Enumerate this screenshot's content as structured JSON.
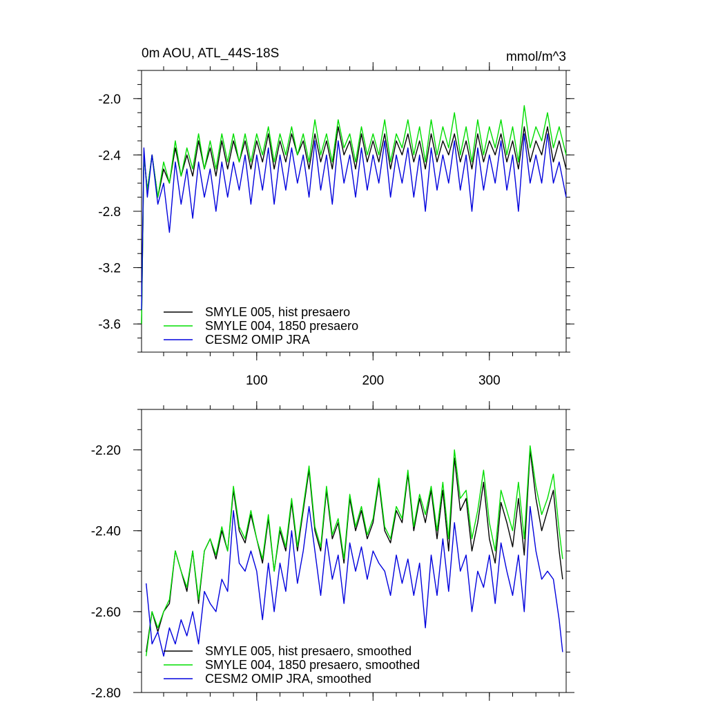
{
  "chart_data": [
    {
      "type": "line",
      "title": "0m AOU, ATL_44S-18S",
      "units": "mmol/m^3",
      "xlim": [
        1,
        366
      ],
      "ylim": [
        -3.8,
        -1.8
      ],
      "xticks": [
        100,
        200,
        300
      ],
      "xtick_labels": [
        "100",
        "200",
        "300"
      ],
      "yticks": [
        -2.0,
        -2.4,
        -2.8,
        -3.2,
        -3.6
      ],
      "ytick_labels": [
        "-2.0",
        "-2.4",
        "-2.8",
        "-3.2",
        "-3.6"
      ],
      "legend_position": "bottom-left",
      "grid": false,
      "series": [
        {
          "name": "SMYLE 005, hist presaero",
          "color": "#000000",
          "x": [
            1,
            3,
            6,
            10,
            15,
            20,
            25,
            30,
            35,
            40,
            45,
            50,
            55,
            60,
            65,
            70,
            75,
            80,
            85,
            90,
            95,
            100,
            105,
            110,
            115,
            120,
            125,
            130,
            135,
            140,
            145,
            150,
            155,
            160,
            165,
            170,
            175,
            180,
            185,
            190,
            195,
            200,
            205,
            210,
            215,
            220,
            225,
            230,
            235,
            240,
            245,
            250,
            255,
            260,
            265,
            270,
            275,
            280,
            285,
            290,
            295,
            300,
            305,
            310,
            315,
            320,
            325,
            330,
            335,
            340,
            345,
            350,
            355,
            360,
            366
          ],
          "values": [
            -3.6,
            -2.4,
            -2.65,
            -2.4,
            -2.7,
            -2.5,
            -2.6,
            -2.35,
            -2.55,
            -2.4,
            -2.55,
            -2.3,
            -2.5,
            -2.35,
            -2.55,
            -2.3,
            -2.5,
            -2.3,
            -2.45,
            -2.3,
            -2.5,
            -2.3,
            -2.45,
            -2.25,
            -2.5,
            -2.3,
            -2.45,
            -2.25,
            -2.4,
            -2.3,
            -2.5,
            -2.25,
            -2.45,
            -2.3,
            -2.5,
            -2.2,
            -2.4,
            -2.3,
            -2.5,
            -2.25,
            -2.45,
            -2.3,
            -2.45,
            -2.25,
            -2.5,
            -2.3,
            -2.4,
            -2.25,
            -2.45,
            -2.3,
            -2.5,
            -2.25,
            -2.45,
            -2.3,
            -2.4,
            -2.25,
            -2.45,
            -2.3,
            -2.5,
            -2.25,
            -2.45,
            -2.3,
            -2.4,
            -2.25,
            -2.45,
            -2.3,
            -2.5,
            -2.2,
            -2.45,
            -2.3,
            -2.4,
            -2.2,
            -2.45,
            -2.3,
            -2.5
          ]
        },
        {
          "name": "SMYLE 004, 1850 presaero",
          "color": "#00dd00",
          "x": [
            1,
            3,
            6,
            10,
            15,
            20,
            25,
            30,
            35,
            40,
            45,
            50,
            55,
            60,
            65,
            70,
            75,
            80,
            85,
            90,
            95,
            100,
            105,
            110,
            115,
            120,
            125,
            130,
            135,
            140,
            145,
            150,
            155,
            160,
            165,
            170,
            175,
            180,
            185,
            190,
            195,
            200,
            205,
            210,
            215,
            220,
            225,
            230,
            235,
            240,
            245,
            250,
            255,
            260,
            265,
            270,
            275,
            280,
            285,
            290,
            295,
            300,
            305,
            310,
            315,
            320,
            325,
            330,
            335,
            340,
            345,
            350,
            355,
            360,
            366
          ],
          "values": [
            -3.6,
            -2.4,
            -2.65,
            -2.4,
            -2.7,
            -2.45,
            -2.6,
            -2.3,
            -2.55,
            -2.35,
            -2.5,
            -2.25,
            -2.5,
            -2.3,
            -2.5,
            -2.25,
            -2.45,
            -2.25,
            -2.45,
            -2.25,
            -2.45,
            -2.25,
            -2.4,
            -2.2,
            -2.45,
            -2.25,
            -2.4,
            -2.2,
            -2.4,
            -2.25,
            -2.45,
            -2.15,
            -2.4,
            -2.25,
            -2.45,
            -2.15,
            -2.35,
            -2.25,
            -2.45,
            -2.2,
            -2.4,
            -2.25,
            -2.4,
            -2.15,
            -2.45,
            -2.25,
            -2.35,
            -2.15,
            -2.4,
            -2.2,
            -2.45,
            -2.15,
            -2.4,
            -2.2,
            -2.35,
            -2.1,
            -2.4,
            -2.2,
            -2.45,
            -2.15,
            -2.4,
            -2.2,
            -2.35,
            -2.15,
            -2.4,
            -2.2,
            -2.45,
            -2.05,
            -2.35,
            -2.2,
            -2.3,
            -2.1,
            -2.35,
            -2.2,
            -2.4
          ]
        },
        {
          "name": "CESM2 OMIP JRA",
          "color": "#0000dd",
          "x": [
            1,
            3,
            6,
            10,
            15,
            20,
            25,
            30,
            35,
            40,
            45,
            50,
            55,
            60,
            65,
            70,
            75,
            80,
            85,
            90,
            95,
            100,
            105,
            110,
            115,
            120,
            125,
            130,
            135,
            140,
            145,
            150,
            155,
            160,
            165,
            170,
            175,
            180,
            185,
            190,
            195,
            200,
            205,
            210,
            215,
            220,
            225,
            230,
            235,
            240,
            245,
            250,
            255,
            260,
            265,
            270,
            275,
            280,
            285,
            290,
            295,
            300,
            305,
            310,
            315,
            320,
            325,
            330,
            335,
            340,
            345,
            350,
            355,
            360,
            366
          ],
          "values": [
            -3.5,
            -2.35,
            -2.7,
            -2.4,
            -2.75,
            -2.6,
            -2.95,
            -2.45,
            -2.75,
            -2.5,
            -2.85,
            -2.45,
            -2.7,
            -2.5,
            -2.8,
            -2.45,
            -2.7,
            -2.45,
            -2.65,
            -2.4,
            -2.75,
            -2.4,
            -2.65,
            -2.35,
            -2.75,
            -2.4,
            -2.65,
            -2.35,
            -2.6,
            -2.4,
            -2.7,
            -2.3,
            -2.65,
            -2.4,
            -2.75,
            -2.3,
            -2.6,
            -2.4,
            -2.7,
            -2.35,
            -2.65,
            -2.4,
            -2.6,
            -2.3,
            -2.7,
            -2.4,
            -2.6,
            -2.35,
            -2.7,
            -2.4,
            -2.8,
            -2.35,
            -2.65,
            -2.4,
            -2.6,
            -2.3,
            -2.65,
            -2.4,
            -2.8,
            -2.35,
            -2.65,
            -2.4,
            -2.6,
            -2.3,
            -2.65,
            -2.4,
            -2.8,
            -2.25,
            -2.6,
            -2.4,
            -2.6,
            -2.25,
            -2.6,
            -2.45,
            -2.7
          ]
        }
      ]
    },
    {
      "type": "line",
      "title": "",
      "xlim": [
        1,
        366
      ],
      "ylim": [
        -2.8,
        -2.1
      ],
      "xticks": [
        100,
        200,
        300
      ],
      "yticks": [
        -2.2,
        -2.4,
        -2.6,
        -2.8
      ],
      "ytick_labels": [
        "-2.20",
        "-2.40",
        "-2.60",
        "-2.80"
      ],
      "legend_position": "bottom-left",
      "grid": false,
      "series": [
        {
          "name": "SMYLE 005, hist presaero, smoothed",
          "color": "#000000",
          "x": [
            5,
            10,
            15,
            20,
            25,
            30,
            35,
            40,
            45,
            50,
            55,
            60,
            65,
            70,
            75,
            80,
            85,
            90,
            95,
            100,
            105,
            110,
            115,
            120,
            125,
            130,
            135,
            140,
            145,
            150,
            155,
            160,
            165,
            170,
            175,
            180,
            185,
            190,
            195,
            200,
            205,
            210,
            215,
            220,
            225,
            230,
            235,
            240,
            245,
            250,
            255,
            260,
            265,
            270,
            275,
            280,
            285,
            290,
            295,
            300,
            305,
            310,
            315,
            320,
            325,
            330,
            335,
            340,
            345,
            350,
            355,
            360,
            363
          ],
          "values": [
            -2.7,
            -2.6,
            -2.65,
            -2.6,
            -2.58,
            -2.45,
            -2.5,
            -2.55,
            -2.45,
            -2.58,
            -2.45,
            -2.42,
            -2.47,
            -2.4,
            -2.45,
            -2.3,
            -2.4,
            -2.43,
            -2.36,
            -2.42,
            -2.48,
            -2.37,
            -2.5,
            -2.4,
            -2.45,
            -2.33,
            -2.45,
            -2.35,
            -2.25,
            -2.4,
            -2.45,
            -2.3,
            -2.42,
            -2.38,
            -2.48,
            -2.32,
            -2.4,
            -2.35,
            -2.42,
            -2.38,
            -2.28,
            -2.4,
            -2.43,
            -2.35,
            -2.38,
            -2.26,
            -2.4,
            -2.32,
            -2.38,
            -2.3,
            -2.42,
            -2.3,
            -2.45,
            -2.22,
            -2.35,
            -2.32,
            -2.45,
            -2.38,
            -2.28,
            -2.42,
            -2.48,
            -2.33,
            -2.38,
            -2.44,
            -2.32,
            -2.46,
            -2.2,
            -2.32,
            -2.4,
            -2.35,
            -2.3,
            -2.45,
            -2.52
          ]
        },
        {
          "name": "SMYLE 004, 1850 presaero, smoothed",
          "color": "#00dd00",
          "x": [
            5,
            10,
            15,
            20,
            25,
            30,
            35,
            40,
            45,
            50,
            55,
            60,
            65,
            70,
            75,
            80,
            85,
            90,
            95,
            100,
            105,
            110,
            115,
            120,
            125,
            130,
            135,
            140,
            145,
            150,
            155,
            160,
            165,
            170,
            175,
            180,
            185,
            190,
            195,
            200,
            205,
            210,
            215,
            220,
            225,
            230,
            235,
            240,
            245,
            250,
            255,
            260,
            265,
            270,
            275,
            280,
            285,
            290,
            295,
            300,
            305,
            310,
            315,
            320,
            325,
            330,
            335,
            340,
            345,
            350,
            355,
            360,
            363
          ],
          "values": [
            -2.71,
            -2.6,
            -2.64,
            -2.6,
            -2.57,
            -2.45,
            -2.5,
            -2.54,
            -2.45,
            -2.57,
            -2.45,
            -2.42,
            -2.46,
            -2.39,
            -2.45,
            -2.29,
            -2.39,
            -2.42,
            -2.35,
            -2.42,
            -2.47,
            -2.36,
            -2.5,
            -2.39,
            -2.44,
            -2.32,
            -2.44,
            -2.34,
            -2.24,
            -2.39,
            -2.44,
            -2.29,
            -2.41,
            -2.37,
            -2.47,
            -2.31,
            -2.39,
            -2.34,
            -2.41,
            -2.37,
            -2.27,
            -2.39,
            -2.42,
            -2.34,
            -2.37,
            -2.25,
            -2.39,
            -2.31,
            -2.36,
            -2.29,
            -2.4,
            -2.28,
            -2.42,
            -2.2,
            -2.32,
            -2.3,
            -2.42,
            -2.35,
            -2.25,
            -2.38,
            -2.45,
            -2.3,
            -2.35,
            -2.4,
            -2.28,
            -2.42,
            -2.19,
            -2.29,
            -2.36,
            -2.32,
            -2.26,
            -2.4,
            -2.47
          ]
        },
        {
          "name": "CESM2 OMIP JRA, smoothed",
          "color": "#0000dd",
          "x": [
            5,
            10,
            15,
            20,
            25,
            30,
            35,
            40,
            45,
            50,
            55,
            60,
            65,
            70,
            75,
            80,
            85,
            90,
            95,
            100,
            105,
            110,
            115,
            120,
            125,
            130,
            135,
            140,
            145,
            150,
            155,
            160,
            165,
            170,
            175,
            180,
            185,
            190,
            195,
            200,
            205,
            210,
            215,
            220,
            225,
            230,
            235,
            240,
            245,
            250,
            255,
            260,
            265,
            270,
            275,
            280,
            285,
            290,
            295,
            300,
            305,
            310,
            315,
            320,
            325,
            330,
            335,
            340,
            345,
            350,
            355,
            360,
            363
          ],
          "values": [
            -2.53,
            -2.68,
            -2.65,
            -2.71,
            -2.64,
            -2.68,
            -2.62,
            -2.66,
            -2.6,
            -2.68,
            -2.55,
            -2.58,
            -2.6,
            -2.52,
            -2.55,
            -2.35,
            -2.48,
            -2.5,
            -2.45,
            -2.5,
            -2.62,
            -2.48,
            -2.6,
            -2.48,
            -2.55,
            -2.4,
            -2.53,
            -2.45,
            -2.34,
            -2.45,
            -2.56,
            -2.42,
            -2.52,
            -2.46,
            -2.58,
            -2.43,
            -2.5,
            -2.44,
            -2.52,
            -2.45,
            -2.48,
            -2.5,
            -2.56,
            -2.46,
            -2.53,
            -2.47,
            -2.56,
            -2.48,
            -2.64,
            -2.46,
            -2.56,
            -2.42,
            -2.55,
            -2.38,
            -2.5,
            -2.46,
            -2.6,
            -2.5,
            -2.54,
            -2.46,
            -2.58,
            -2.43,
            -2.5,
            -2.56,
            -2.46,
            -2.6,
            -2.34,
            -2.45,
            -2.52,
            -2.5,
            -2.52,
            -2.62,
            -2.7
          ]
        }
      ]
    }
  ]
}
